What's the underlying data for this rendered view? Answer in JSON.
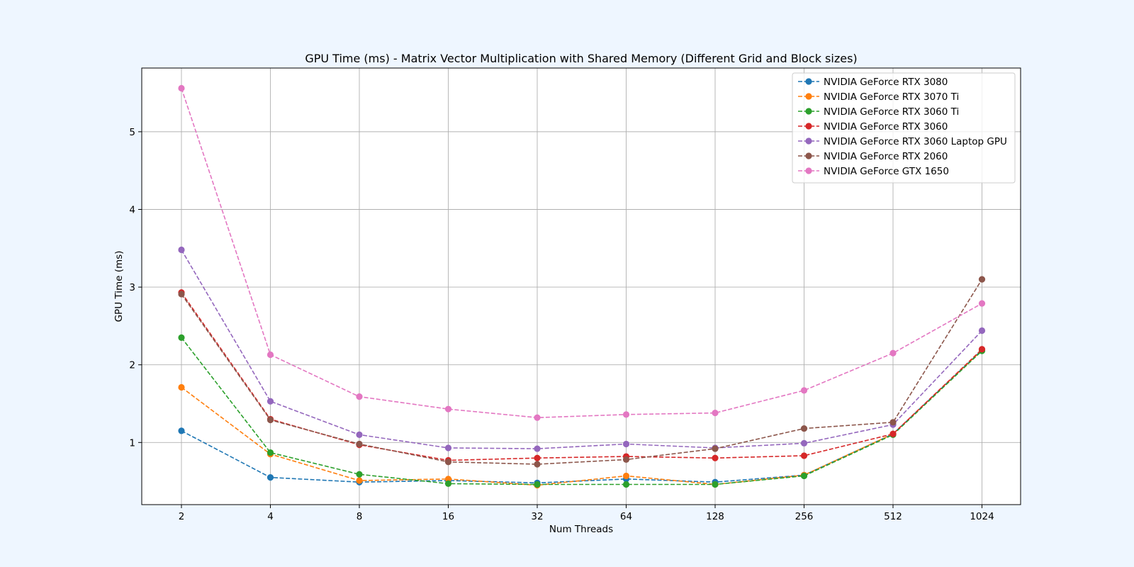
{
  "chart_data": {
    "type": "line",
    "title": "GPU Time (ms) - Matrix Vector Multiplication with Shared Memory (Different Grid and Block sizes)",
    "xlabel": "Num Threads",
    "ylabel": "GPU Time (ms)",
    "categories": [
      "2",
      "4",
      "8",
      "16",
      "32",
      "64",
      "128",
      "256",
      "512",
      "1024"
    ],
    "ylim": [
      0.2,
      5.82
    ],
    "yticks": [
      1,
      2,
      3,
      4,
      5
    ],
    "grid": true,
    "legend_position": "top-right",
    "line_style": "dashed",
    "marker": "circle",
    "series": [
      {
        "name": "NVIDIA GeForce RTX 3080",
        "color": "#1f77b4",
        "values": [
          1.15,
          0.55,
          0.49,
          0.51,
          0.48,
          0.53,
          0.49,
          0.58,
          1.11,
          2.19
        ]
      },
      {
        "name": "NVIDIA GeForce RTX 3070 Ti",
        "color": "#ff7f0e",
        "values": [
          1.71,
          0.85,
          0.51,
          0.53,
          0.45,
          0.57,
          0.46,
          0.58,
          1.11,
          2.19
        ]
      },
      {
        "name": "NVIDIA GeForce RTX 3060 Ti",
        "color": "#2ca02c",
        "values": [
          2.35,
          0.87,
          0.59,
          0.47,
          0.46,
          0.46,
          0.46,
          0.57,
          1.1,
          2.18
        ]
      },
      {
        "name": "NVIDIA GeForce RTX 3060",
        "color": "#d62728",
        "values": [
          2.93,
          1.3,
          0.97,
          0.77,
          0.8,
          0.82,
          0.8,
          0.83,
          1.11,
          2.2
        ]
      },
      {
        "name": "NVIDIA GeForce RTX 3060 Laptop GPU",
        "color": "#9467bd",
        "values": [
          3.48,
          1.53,
          1.1,
          0.93,
          0.92,
          0.98,
          0.93,
          0.99,
          1.23,
          2.44
        ]
      },
      {
        "name": "NVIDIA GeForce RTX 2060",
        "color": "#8c564b",
        "values": [
          2.91,
          1.29,
          0.98,
          0.75,
          0.72,
          0.78,
          0.92,
          1.18,
          1.26,
          3.1
        ]
      },
      {
        "name": "NVIDIA GeForce GTX 1650",
        "color": "#e377c2",
        "values": [
          5.56,
          2.13,
          1.59,
          1.43,
          1.32,
          1.36,
          1.38,
          1.67,
          2.15,
          2.79
        ]
      }
    ]
  }
}
